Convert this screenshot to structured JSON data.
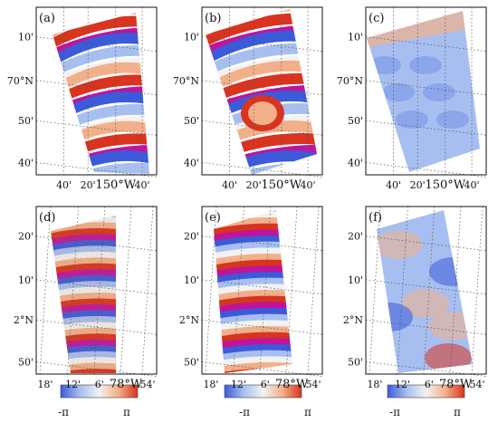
{
  "figure": {
    "panels": [
      {
        "id": "a",
        "label": "(a)",
        "row": "top",
        "y_ticks": [
          "10'",
          "70°N",
          "50'",
          "40'"
        ],
        "x_ticks": [
          "40'",
          "20'",
          "150°W",
          "40'"
        ],
        "phase_pattern": "dense fringes"
      },
      {
        "id": "b",
        "label": "(b)",
        "row": "top",
        "y_ticks": [
          "10'",
          "70°N",
          "50'",
          "40'"
        ],
        "x_ticks": [
          "40'",
          "20'",
          "150°W",
          "40'"
        ],
        "phase_pattern": "dense fringes"
      },
      {
        "id": "c",
        "label": "(c)",
        "row": "top",
        "y_ticks": [
          "10'",
          "70°N",
          "50'",
          "40'"
        ],
        "x_ticks": [
          "40'",
          "20'",
          "150°W",
          "40'"
        ],
        "phase_pattern": "smooth blue"
      },
      {
        "id": "d",
        "label": "(d)",
        "row": "bottom",
        "y_ticks": [
          "20'",
          "10'",
          "2°N",
          "50'"
        ],
        "x_ticks": [
          "18'",
          "12'",
          "6'",
          "78°W",
          "54'"
        ],
        "phase_pattern": "horizontal fringes, noisy"
      },
      {
        "id": "e",
        "label": "(e)",
        "row": "bottom",
        "y_ticks": [
          "20'",
          "10'",
          "2°N",
          "50'"
        ],
        "x_ticks": [
          "18'",
          "12'",
          "6'",
          "78°W",
          "54'"
        ],
        "phase_pattern": "horizontal fringes, smooth"
      },
      {
        "id": "f",
        "label": "(f)",
        "row": "bottom",
        "y_ticks": [
          "20'",
          "10'",
          "2°N",
          "50'"
        ],
        "x_ticks": [
          "18'",
          "12'",
          "6'",
          "78°W",
          "54'"
        ],
        "phase_pattern": "low-frequency residual"
      }
    ],
    "colorbar": {
      "min_label": "-π",
      "max_label": "π"
    },
    "colors": {
      "blue": "#3b5bdb",
      "light_blue": "#a7bff0",
      "white": "#f2f2f2",
      "peach": "#f2b08a",
      "red": "#d8341f",
      "magenta": "#c0139e",
      "grid": "#555555"
    }
  }
}
